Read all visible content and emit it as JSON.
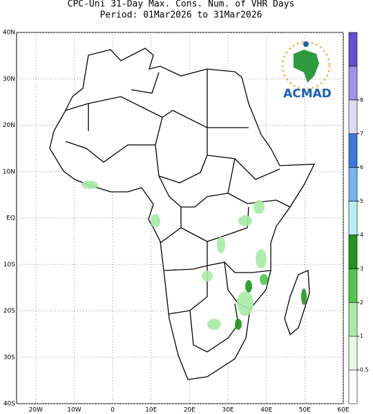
{
  "title": [
    "CPC-Uni 31-Day Max. Cons. Num. of VHR Days",
    "Period: 01Mar2026 to 31Mar2026"
  ],
  "logo": "ACMAD",
  "map": {
    "xlim": [
      -25,
      60
    ],
    "ylim": [
      -40,
      40
    ],
    "xticks": [
      {
        "value": -20,
        "label": "20W"
      },
      {
        "value": -10,
        "label": "10W"
      },
      0,
      {
        "value": 10,
        "label": "10E"
      },
      {
        "value": 20,
        "label": "20E"
      },
      {
        "value": 30,
        "label": "30E"
      },
      {
        "value": 40,
        "label": "40E"
      },
      {
        "value": 50,
        "label": "50E"
      },
      {
        "value": 60,
        "label": "60E"
      }
    ],
    "yticks": [
      {
        "value": 40,
        "label": "40N"
      },
      {
        "value": 30,
        "label": "30N"
      },
      {
        "value": 20,
        "label": "20N"
      },
      {
        "value": 10,
        "label": "10N"
      },
      {
        "value": 0,
        "label": "EQ"
      },
      {
        "value": -10,
        "label": "10S"
      },
      {
        "value": -20,
        "label": "20S"
      },
      {
        "value": -30,
        "label": "30S"
      },
      {
        "value": -40,
        "label": "40S"
      }
    ],
    "grid": true
  },
  "legend": {
    "levels": [
      0.5,
      1,
      2,
      3,
      4,
      5,
      6,
      7,
      8
    ],
    "colors": [
      "#ffffff",
      "#e6fae6",
      "#a6eca6",
      "#50c850",
      "#1e961e",
      "#b4f0f0",
      "#78b4f0",
      "#3c78dc",
      "#dcdcf2",
      "#a090f0",
      "#6450d2"
    ]
  }
}
